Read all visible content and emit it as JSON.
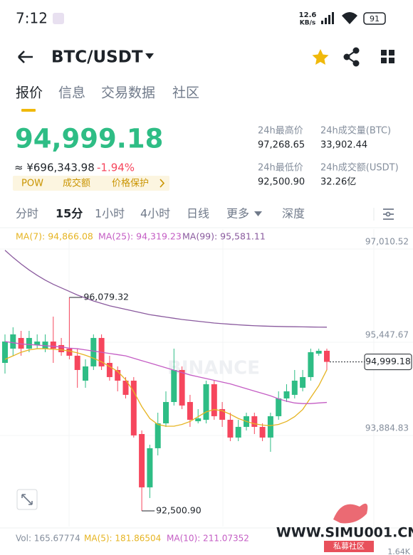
{
  "status": {
    "time": "7:12",
    "net_speed": "12.6",
    "net_unit": "KB/s",
    "battery": "91"
  },
  "header": {
    "pair": "BTC/USDT"
  },
  "tabs": [
    "报价",
    "信息",
    "交易数据",
    "社区"
  ],
  "price": {
    "cny": "≈ ¥696,343.98",
    "change": "-1.94%",
    "tags": [
      "POW",
      "成交额",
      "价格保护"
    ]
  },
  "stats": [
    {
      "label": "24h最高价",
      "value": "97,268.65"
    },
    {
      "label": "24h成交量(BTC)",
      "value": "33,902.44"
    },
    {
      "label": "24h最低价",
      "value": "92,500.90"
    },
    {
      "label": "24h成交额(USDT)",
      "value": "32.26亿"
    }
  ],
  "intervals": [
    "分时",
    "15分",
    "1小时",
    "4小时",
    "日线",
    "更多",
    "深度"
  ],
  "chart": {
    "type": "candlestick",
    "ylim": [
      92238,
      97225
    ],
    "yticks": [
      {
        "value": 97010.52,
        "label": "97,010.52"
      },
      {
        "value": 95447.67,
        "label": "95,447.67"
      },
      {
        "value": 93884.83,
        "label": "93,884.83"
      }
    ],
    "up_color": "#2ebd85",
    "down_color": "#f6465d",
    "last_price": {
      "value": 94999.18,
      "label": "94,999.18"
    },
    "watermark": "BINANCE",
    "annotations": [
      {
        "value": 96079.32,
        "label": "96,079.32"
      },
      {
        "value": 92500.9,
        "label": "92,500.90"
      }
    ],
    "ma_lines": [
      {
        "name": "MA(7): 94,866.08",
        "color": "#e6b422",
        "values": [
          95042,
          95100,
          95160,
          95200,
          95220,
          95220,
          95210,
          95200,
          95180,
          95150,
          95110,
          95060,
          95000,
          94920,
          94840,
          94700,
          94500,
          94250,
          94050,
          93950,
          93920,
          93920,
          93950,
          94000,
          94080,
          94160,
          94200,
          94180,
          94120,
          94050,
          94000,
          93960,
          93940,
          93930,
          93950,
          94000,
          94080,
          94200,
          94400,
          94600,
          94866
        ]
      },
      {
        "name": "MA(25): 94,319.23",
        "color": "#c45dc4",
        "values": [
          95340,
          95320,
          95300,
          95290,
          95280,
          95270,
          95260,
          95250,
          95230,
          95220,
          95200,
          95180,
          95160,
          95140,
          95120,
          95100,
          95060,
          95020,
          94980,
          94940,
          94900,
          94860,
          94820,
          94780,
          94750,
          94720,
          94690,
          94660,
          94630,
          94590,
          94550,
          94510,
          94470,
          94430,
          94380,
          94340,
          94310,
          94300,
          94300,
          94310,
          94319
        ]
      },
      {
        "name": "MA(99): 95,581.11",
        "color": "#8a5a9e",
        "values": [
          96870,
          96750,
          96640,
          96540,
          96450,
          96370,
          96300,
          96240,
          96180,
          96120,
          96070,
          96020,
          95980,
          95940,
          95910,
          95880,
          95850,
          95820,
          95790,
          95770,
          95750,
          95730,
          95710,
          95695,
          95680,
          95665,
          95650,
          95640,
          95630,
          95620,
          95612,
          95605,
          95600,
          95596,
          95593,
          95590,
          95588,
          95586,
          95584,
          95582,
          95581
        ]
      }
    ],
    "candles": [
      {
        "o": 94982,
        "h": 95460,
        "l": 94803,
        "c": 95340
      },
      {
        "o": 95221,
        "h": 95579,
        "l": 95102,
        "c": 95460
      },
      {
        "o": 95400,
        "h": 95519,
        "l": 95102,
        "c": 95221
      },
      {
        "o": 95221,
        "h": 95519,
        "l": 95161,
        "c": 95400
      },
      {
        "o": 95281,
        "h": 95460,
        "l": 95221,
        "c": 95340
      },
      {
        "o": 95221,
        "h": 95460,
        "l": 95161,
        "c": 95340
      },
      {
        "o": 95340,
        "h": 95758,
        "l": 94982,
        "c": 95221
      },
      {
        "o": 95281,
        "h": 95400,
        "l": 95102,
        "c": 95161
      },
      {
        "o": 95221,
        "h": 96079.32,
        "l": 95042,
        "c": 95102
      },
      {
        "o": 95102,
        "h": 95221,
        "l": 94565,
        "c": 94863
      },
      {
        "o": 94684,
        "h": 95042,
        "l": 94565,
        "c": 94923
      },
      {
        "o": 94923,
        "h": 95460,
        "l": 94863,
        "c": 95400
      },
      {
        "o": 95400,
        "h": 95460,
        "l": 94863,
        "c": 94923
      },
      {
        "o": 94982,
        "h": 95102,
        "l": 94684,
        "c": 94744
      },
      {
        "o": 94863,
        "h": 94923,
        "l": 94505,
        "c": 94684
      },
      {
        "o": 94684,
        "h": 94744,
        "l": 94386,
        "c": 94446
      },
      {
        "o": 94684,
        "h": 94744,
        "l": 93730,
        "c": 93766
      },
      {
        "o": 93789,
        "h": 93849,
        "l": 92500.9,
        "c": 92895
      },
      {
        "o": 92895,
        "h": 93610,
        "l": 92716,
        "c": 93551
      },
      {
        "o": 93551,
        "h": 94147,
        "l": 93431,
        "c": 93968
      },
      {
        "o": 93968,
        "h": 94505,
        "l": 93909,
        "c": 94326
      },
      {
        "o": 94326,
        "h": 95221,
        "l": 94267,
        "c": 94863
      },
      {
        "o": 94863,
        "h": 94923,
        "l": 94207,
        "c": 94267
      },
      {
        "o": 94326,
        "h": 94446,
        "l": 93909,
        "c": 94028
      },
      {
        "o": 94004,
        "h": 94207,
        "l": 93968,
        "c": 94052
      },
      {
        "o": 94028,
        "h": 94684,
        "l": 93968,
        "c": 94624
      },
      {
        "o": 94624,
        "h": 94684,
        "l": 94028,
        "c": 94088
      },
      {
        "o": 94207,
        "h": 94326,
        "l": 93909,
        "c": 94028
      },
      {
        "o": 94028,
        "h": 94147,
        "l": 93670,
        "c": 93730
      },
      {
        "o": 93730,
        "h": 94028,
        "l": 93670,
        "c": 93909
      },
      {
        "o": 93909,
        "h": 94147,
        "l": 93849,
        "c": 94088
      },
      {
        "o": 94088,
        "h": 94147,
        "l": 93789,
        "c": 93909
      },
      {
        "o": 93909,
        "h": 93968,
        "l": 93670,
        "c": 93730
      },
      {
        "o": 93730,
        "h": 94147,
        "l": 93491,
        "c": 94088
      },
      {
        "o": 94088,
        "h": 94505,
        "l": 94028,
        "c": 94386
      },
      {
        "o": 94386,
        "h": 94624,
        "l": 94326,
        "c": 94505
      },
      {
        "o": 94446,
        "h": 94863,
        "l": 94386,
        "c": 94684
      },
      {
        "o": 94565,
        "h": 94863,
        "l": 94505,
        "c": 94744
      },
      {
        "o": 94744,
        "h": 95221,
        "l": 94684,
        "c": 95161
      },
      {
        "o": 95137,
        "h": 95221,
        "l": 95102,
        "c": 95185
      },
      {
        "o": 95185,
        "h": 95221,
        "l": 94863,
        "c": 94999.18
      }
    ]
  },
  "volume": {
    "vol": "Vol: 165.67774",
    "ma5": "MA(5): 181.86504",
    "ma10": "MA(10): 211.07352",
    "axis": "1.64K"
  },
  "footer_watermark": {
    "site": "WWW.SIMU001.CN",
    "name": "私募社区"
  }
}
